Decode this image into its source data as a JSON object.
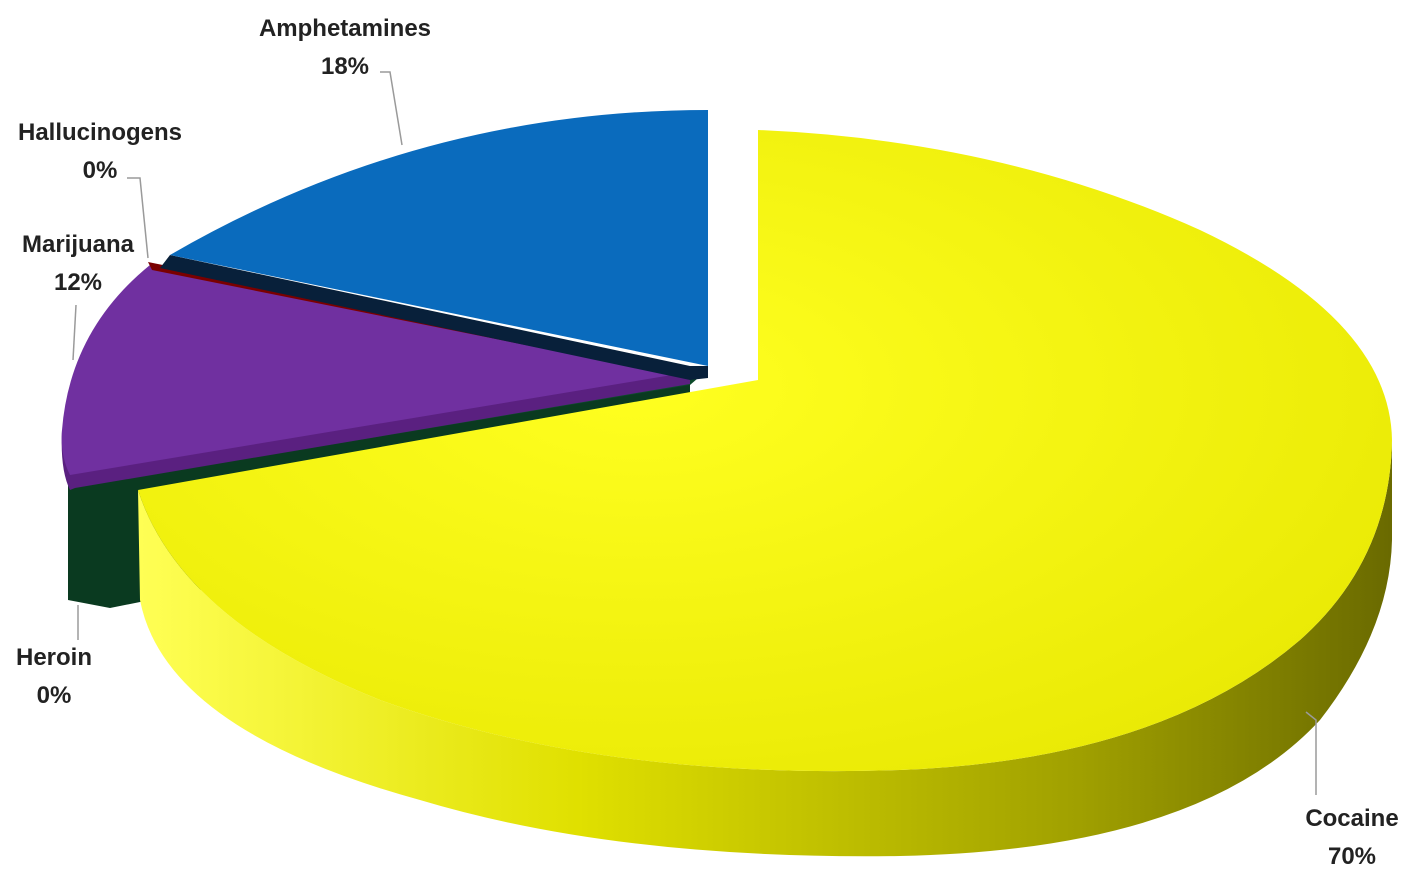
{
  "chart_data": {
    "type": "pie",
    "style": "3d-exploded",
    "categories": [
      "Cocaine",
      "Heroin",
      "Marijuana",
      "Hallucinogens",
      "Amphetamines"
    ],
    "values": [
      70,
      0.4,
      12,
      0.4,
      18
    ],
    "labels": [
      {
        "name": "Cocaine",
        "pct": "70%"
      },
      {
        "name": "Heroin",
        "pct": "0%"
      },
      {
        "name": "Marijuana",
        "pct": "12%"
      },
      {
        "name": "Hallucinogens",
        "pct": "0%"
      },
      {
        "name": "Amphetamines",
        "pct": "18%"
      }
    ],
    "colors": [
      "#f5f500",
      "#0c4a2a",
      "#7030a0",
      "#7a0000",
      "#0a6bbd"
    ],
    "title": "",
    "legend": "none"
  }
}
